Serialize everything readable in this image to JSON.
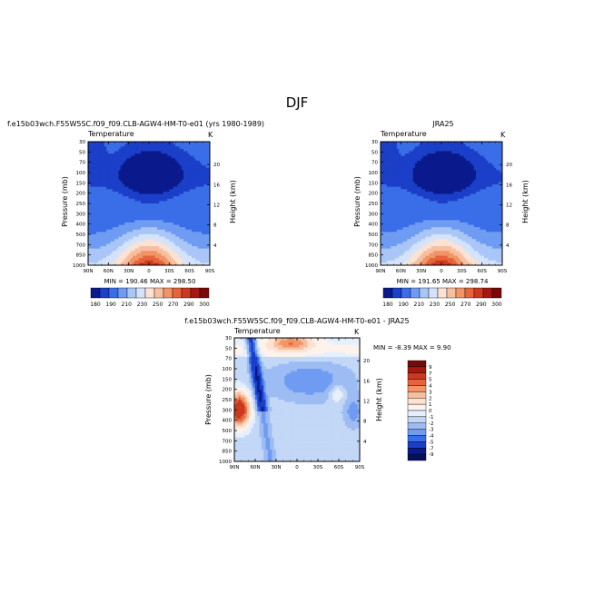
{
  "page_title": "DJF",
  "chart_data": [
    {
      "type": "heatmap",
      "title": "f.e15b03wch.F55W5SC.f09_f09.CLB-AGW4-HM-T0-e01 (yrs 1980-1989)",
      "subtitle_left": "Temperature",
      "subtitle_right": "K",
      "xlabel": "",
      "ylabel": "Pressure (mb)",
      "y2label": "Height (km)",
      "x_ticks": [
        "90N",
        "60N",
        "30N",
        "0",
        "30S",
        "60S",
        "90S"
      ],
      "y_ticks": [
        "30",
        "50",
        "70",
        "100",
        "150",
        "200",
        "250",
        "300",
        "400",
        "500",
        "700",
        "850",
        "1000"
      ],
      "y2_ticks": [
        "20",
        "16",
        "12",
        "8",
        "4"
      ],
      "stats": "MIN = 190.46   MAX = 298.50",
      "colorbar_labels": [
        "180",
        "190",
        "210",
        "230",
        "250",
        "270",
        "290",
        "300"
      ],
      "min": 190.46,
      "max": 298.5
    },
    {
      "type": "heatmap",
      "title": "JRA25",
      "subtitle_left": "Temperature",
      "subtitle_right": "K",
      "xlabel": "",
      "ylabel": "Pressure (mb)",
      "y2label": "Height (km)",
      "x_ticks": [
        "90N",
        "60N",
        "30N",
        "0",
        "30S",
        "60S",
        "90S"
      ],
      "y_ticks": [
        "30",
        "50",
        "70",
        "100",
        "150",
        "200",
        "250",
        "300",
        "400",
        "500",
        "700",
        "850",
        "1000"
      ],
      "y2_ticks": [
        "20",
        "16",
        "12",
        "8",
        "4"
      ],
      "stats": "MIN = 191.65   MAX = 298.74",
      "colorbar_labels": [
        "180",
        "190",
        "210",
        "230",
        "250",
        "270",
        "290",
        "300"
      ],
      "min": 191.65,
      "max": 298.74
    },
    {
      "type": "heatmap",
      "title": "f.e15b03wch.F55W5SC.f09_f09.CLB-AGW4-HM-T0-e01 - JRA25",
      "subtitle_left": "Temperature",
      "subtitle_right": "K",
      "xlabel": "",
      "ylabel": "Pressure (mb)",
      "y2label": "Height (km)",
      "x_ticks": [
        "90N",
        "60N",
        "30N",
        "0",
        "30S",
        "60S",
        "90S"
      ],
      "y_ticks": [
        "30",
        "50",
        "70",
        "100",
        "150",
        "200",
        "250",
        "300",
        "400",
        "500",
        "700",
        "850",
        "1000"
      ],
      "y2_ticks": [
        "20",
        "16",
        "12",
        "8",
        "4"
      ],
      "stats": "MIN =   -8.39   MAX =    9.90",
      "colorbar_labels": [
        "9",
        "7",
        "5",
        "4",
        "3",
        "2",
        "1",
        "0",
        "-1",
        "-2",
        "-3",
        "-4",
        "-5",
        "-7",
        "-9"
      ],
      "min": -8.39,
      "max": 9.9
    }
  ],
  "colors": {
    "abs_scale": [
      "#0a1a8c",
      "#1b3fc8",
      "#3a6ee8",
      "#6f9cf2",
      "#a9c6f7",
      "#d4e3fa",
      "#fbe2d2",
      "#f7bfa0",
      "#f19466",
      "#e5643a",
      "#cc3a1e",
      "#a51812",
      "#7a0808"
    ],
    "diff_scale": [
      "#7a0808",
      "#a51812",
      "#cc3a1e",
      "#e5643a",
      "#f19466",
      "#f7bfa0",
      "#fbe2d2",
      "#fdf3ec",
      "#e6effc",
      "#c3d7f7",
      "#9dbcf3",
      "#6f9cf2",
      "#3a6ee8",
      "#1b3fc8",
      "#0a1a8c",
      "#06105e"
    ]
  }
}
